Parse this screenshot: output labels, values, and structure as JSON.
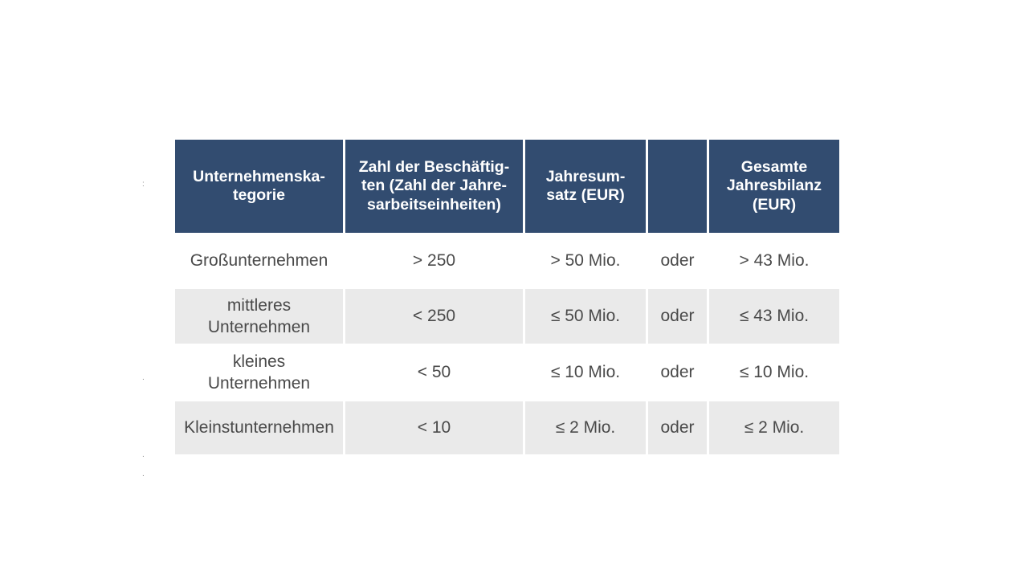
{
  "table": {
    "headers": [
      "Unternehmenska-\ntegorie",
      "Zahl der Beschäftig-\nten (Zahl der Jahre-\nsarbeitseinheiten)",
      "Jahresum-\nsatz (EUR)",
      "",
      "Gesamte\nJahresbilanz\n(EUR)"
    ],
    "rows": [
      {
        "category": "Großunternehmen",
        "employees": "> 250",
        "turnover": "> 50 Mio.",
        "connector": "oder",
        "balance": "> 43 Mio."
      },
      {
        "category": "mittleres\nUnternehmen",
        "employees": "< 250",
        "turnover": "≤ 50 Mio.",
        "connector": "oder",
        "balance": "≤ 43 Mio."
      },
      {
        "category": "kleines\nUnternehmen",
        "employees": "< 50",
        "turnover": "≤ 10 Mio.",
        "connector": "oder",
        "balance": "≤ 10 Mio."
      },
      {
        "category": "Kleinstunternehmen",
        "employees": "< 10",
        "turnover": "≤ 2 Mio.",
        "connector": "oder",
        "balance": "≤ 2 Mio."
      }
    ]
  },
  "colors": {
    "header_bg": "#324c70",
    "header_text": "#ffffff",
    "shaded_row_bg": "#eaeaea",
    "body_text": "#4a4a4a"
  }
}
